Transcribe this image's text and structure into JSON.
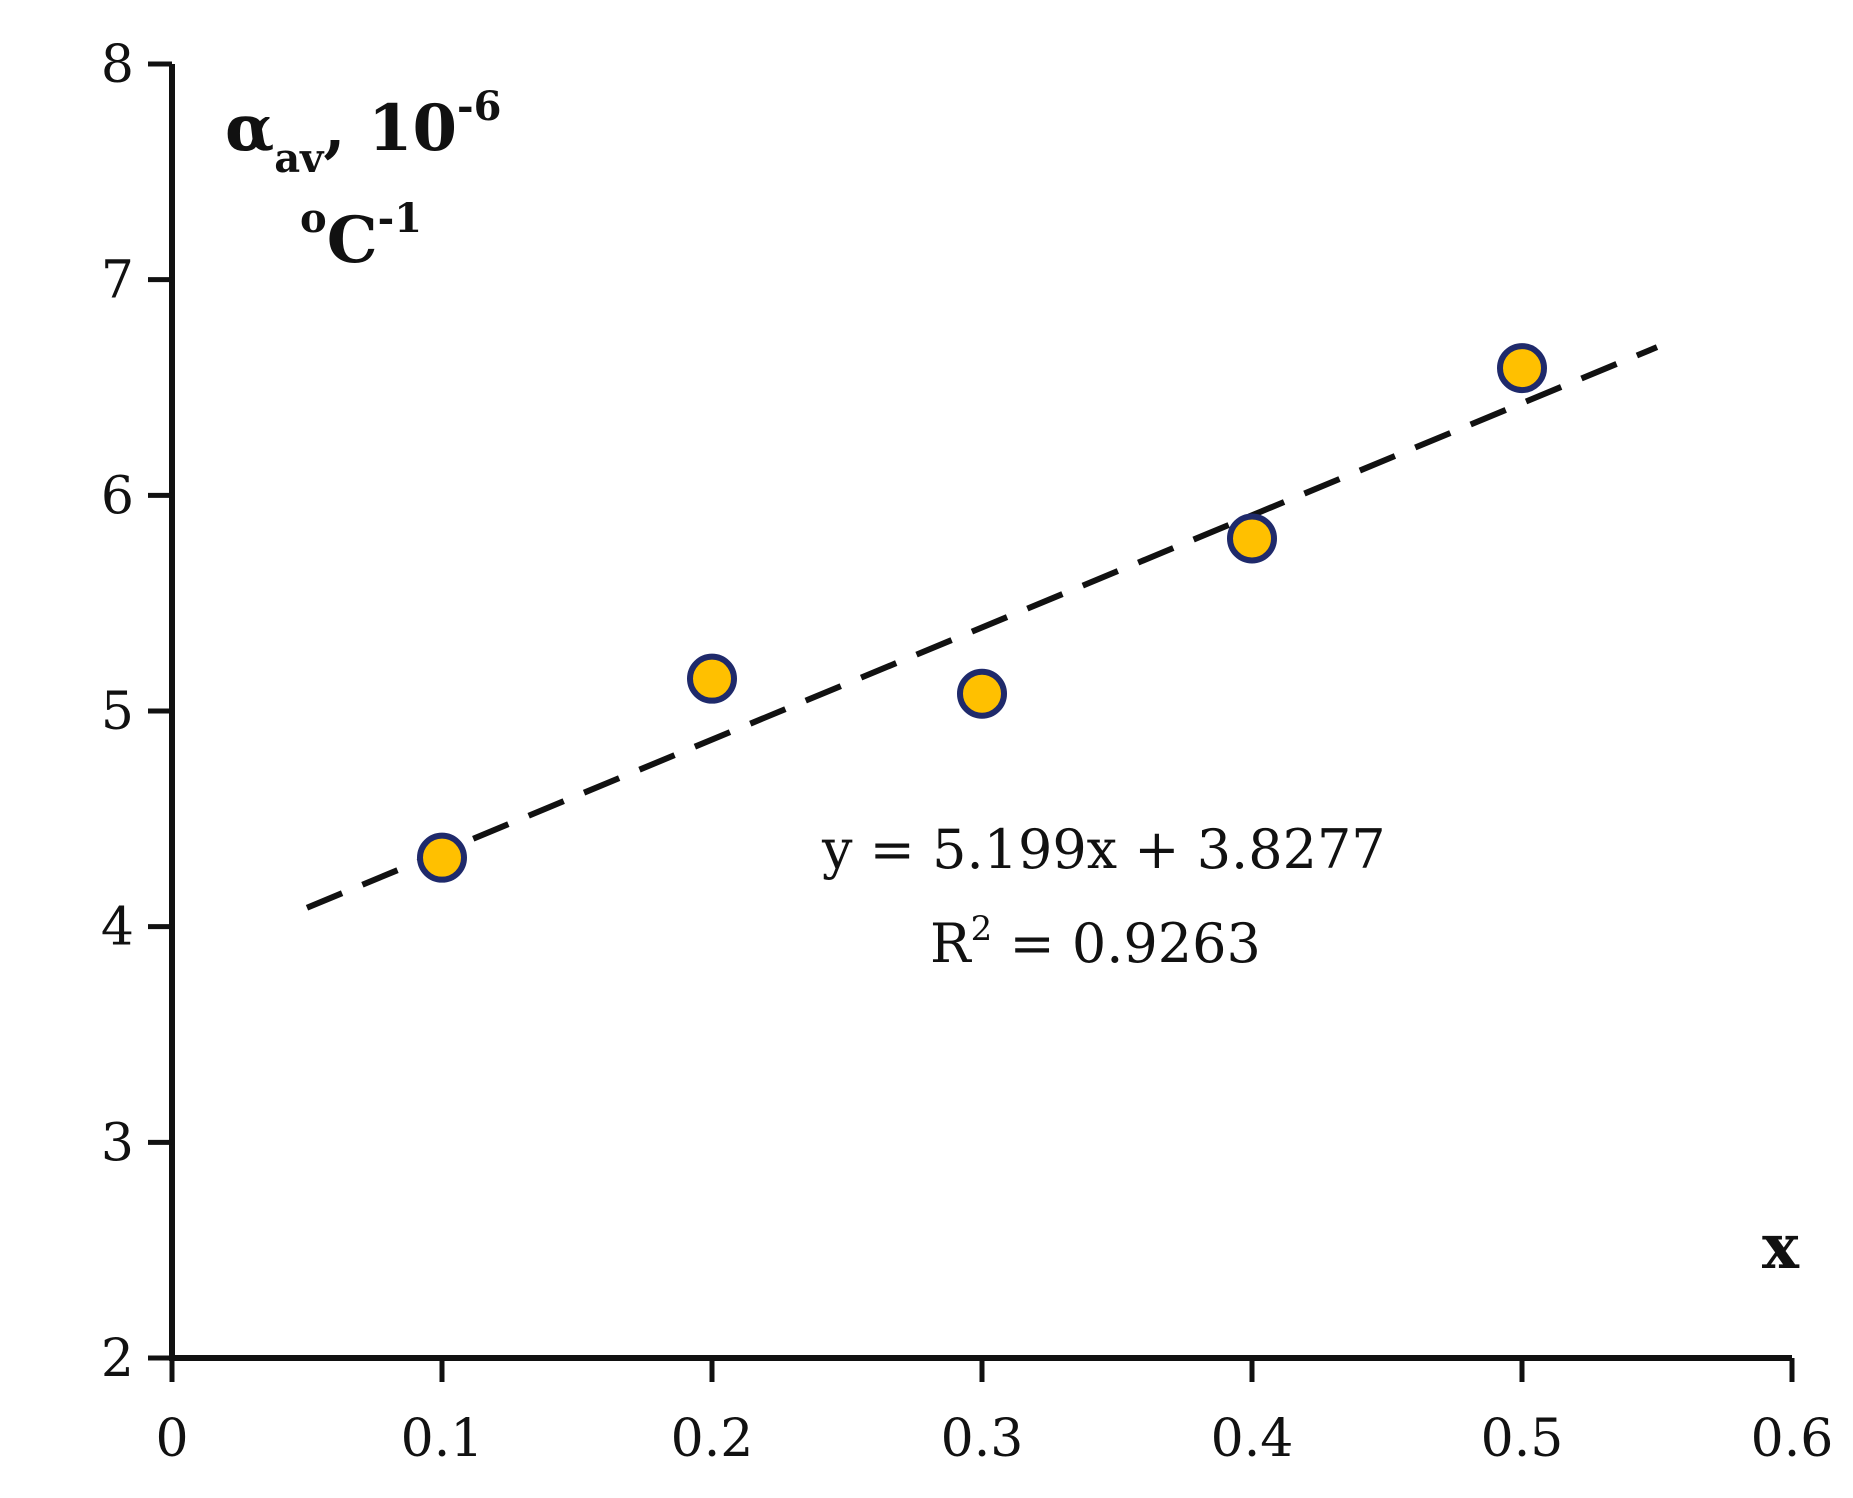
{
  "chart_data": {
    "type": "scatter",
    "x_values": [
      0.1,
      0.2,
      0.3,
      0.4,
      0.5
    ],
    "y_values": [
      4.32,
      5.15,
      5.08,
      5.8,
      6.59
    ],
    "xlim": [
      0,
      0.6
    ],
    "ylim": [
      2,
      8
    ],
    "x_ticks": [
      0,
      0.1,
      0.2,
      0.3,
      0.4,
      0.5,
      0.6
    ],
    "x_tick_labels": [
      "0",
      "0.1",
      "0.2",
      "0.3",
      "0.4",
      "0.5",
      "0.6"
    ],
    "y_ticks": [
      2,
      3,
      4,
      5,
      6,
      7,
      8
    ],
    "y_tick_labels": [
      "2",
      "3",
      "4",
      "5",
      "6",
      "7",
      "8"
    ],
    "xlabel": "x",
    "ylabel": {
      "symbol": "α",
      "subscript": "av",
      "comma": ",",
      "base": "10",
      "exponent": "-6",
      "unit_prefix": "o",
      "unit": "C",
      "unit_exponent": "-1"
    },
    "trendline": {
      "slope": 5.199,
      "intercept": 3.8277,
      "x_range": [
        0.05,
        0.55
      ],
      "style": "dashed"
    },
    "annotation": {
      "equation": "y = 5.199x + 3.8277",
      "r2_prefix": "R",
      "r2_exponent": "2",
      "r2_suffix": " = 0.9263"
    },
    "grid": false,
    "legend": "none",
    "colors": {
      "marker_fill": "#FFC000",
      "marker_stroke": "#1F2A6B",
      "trendline": "#111111",
      "axis": "#111111"
    }
  }
}
